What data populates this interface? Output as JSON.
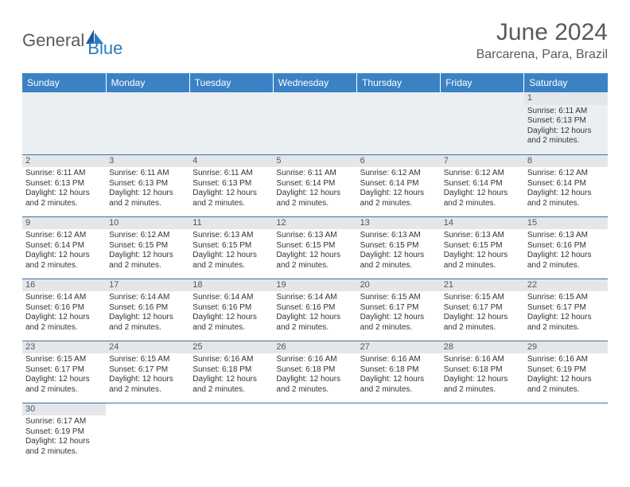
{
  "logo": {
    "part1": "General",
    "part2": "Blue"
  },
  "title": "June 2024",
  "location": "Barcarena, Para, Brazil",
  "colors": {
    "header_bg": "#3b82c4",
    "header_text": "#ffffff",
    "row_divider": "#3b6fa3",
    "daynum_bg": "#e4e7ea",
    "text": "#333333",
    "title_text": "#5a5a5a",
    "logo_blue": "#2b7bbf"
  },
  "weekdays": [
    "Sunday",
    "Monday",
    "Tuesday",
    "Wednesday",
    "Thursday",
    "Friday",
    "Saturday"
  ],
  "weeks": [
    [
      null,
      null,
      null,
      null,
      null,
      null,
      {
        "n": "1",
        "sr": "Sunrise: 6:11 AM",
        "ss": "Sunset: 6:13 PM",
        "dl": "Daylight: 12 hours and 2 minutes."
      }
    ],
    [
      {
        "n": "2",
        "sr": "Sunrise: 6:11 AM",
        "ss": "Sunset: 6:13 PM",
        "dl": "Daylight: 12 hours and 2 minutes."
      },
      {
        "n": "3",
        "sr": "Sunrise: 6:11 AM",
        "ss": "Sunset: 6:13 PM",
        "dl": "Daylight: 12 hours and 2 minutes."
      },
      {
        "n": "4",
        "sr": "Sunrise: 6:11 AM",
        "ss": "Sunset: 6:13 PM",
        "dl": "Daylight: 12 hours and 2 minutes."
      },
      {
        "n": "5",
        "sr": "Sunrise: 6:11 AM",
        "ss": "Sunset: 6:14 PM",
        "dl": "Daylight: 12 hours and 2 minutes."
      },
      {
        "n": "6",
        "sr": "Sunrise: 6:12 AM",
        "ss": "Sunset: 6:14 PM",
        "dl": "Daylight: 12 hours and 2 minutes."
      },
      {
        "n": "7",
        "sr": "Sunrise: 6:12 AM",
        "ss": "Sunset: 6:14 PM",
        "dl": "Daylight: 12 hours and 2 minutes."
      },
      {
        "n": "8",
        "sr": "Sunrise: 6:12 AM",
        "ss": "Sunset: 6:14 PM",
        "dl": "Daylight: 12 hours and 2 minutes."
      }
    ],
    [
      {
        "n": "9",
        "sr": "Sunrise: 6:12 AM",
        "ss": "Sunset: 6:14 PM",
        "dl": "Daylight: 12 hours and 2 minutes."
      },
      {
        "n": "10",
        "sr": "Sunrise: 6:12 AM",
        "ss": "Sunset: 6:15 PM",
        "dl": "Daylight: 12 hours and 2 minutes."
      },
      {
        "n": "11",
        "sr": "Sunrise: 6:13 AM",
        "ss": "Sunset: 6:15 PM",
        "dl": "Daylight: 12 hours and 2 minutes."
      },
      {
        "n": "12",
        "sr": "Sunrise: 6:13 AM",
        "ss": "Sunset: 6:15 PM",
        "dl": "Daylight: 12 hours and 2 minutes."
      },
      {
        "n": "13",
        "sr": "Sunrise: 6:13 AM",
        "ss": "Sunset: 6:15 PM",
        "dl": "Daylight: 12 hours and 2 minutes."
      },
      {
        "n": "14",
        "sr": "Sunrise: 6:13 AM",
        "ss": "Sunset: 6:15 PM",
        "dl": "Daylight: 12 hours and 2 minutes."
      },
      {
        "n": "15",
        "sr": "Sunrise: 6:13 AM",
        "ss": "Sunset: 6:16 PM",
        "dl": "Daylight: 12 hours and 2 minutes."
      }
    ],
    [
      {
        "n": "16",
        "sr": "Sunrise: 6:14 AM",
        "ss": "Sunset: 6:16 PM",
        "dl": "Daylight: 12 hours and 2 minutes."
      },
      {
        "n": "17",
        "sr": "Sunrise: 6:14 AM",
        "ss": "Sunset: 6:16 PM",
        "dl": "Daylight: 12 hours and 2 minutes."
      },
      {
        "n": "18",
        "sr": "Sunrise: 6:14 AM",
        "ss": "Sunset: 6:16 PM",
        "dl": "Daylight: 12 hours and 2 minutes."
      },
      {
        "n": "19",
        "sr": "Sunrise: 6:14 AM",
        "ss": "Sunset: 6:16 PM",
        "dl": "Daylight: 12 hours and 2 minutes."
      },
      {
        "n": "20",
        "sr": "Sunrise: 6:15 AM",
        "ss": "Sunset: 6:17 PM",
        "dl": "Daylight: 12 hours and 2 minutes."
      },
      {
        "n": "21",
        "sr": "Sunrise: 6:15 AM",
        "ss": "Sunset: 6:17 PM",
        "dl": "Daylight: 12 hours and 2 minutes."
      },
      {
        "n": "22",
        "sr": "Sunrise: 6:15 AM",
        "ss": "Sunset: 6:17 PM",
        "dl": "Daylight: 12 hours and 2 minutes."
      }
    ],
    [
      {
        "n": "23",
        "sr": "Sunrise: 6:15 AM",
        "ss": "Sunset: 6:17 PM",
        "dl": "Daylight: 12 hours and 2 minutes."
      },
      {
        "n": "24",
        "sr": "Sunrise: 6:15 AM",
        "ss": "Sunset: 6:17 PM",
        "dl": "Daylight: 12 hours and 2 minutes."
      },
      {
        "n": "25",
        "sr": "Sunrise: 6:16 AM",
        "ss": "Sunset: 6:18 PM",
        "dl": "Daylight: 12 hours and 2 minutes."
      },
      {
        "n": "26",
        "sr": "Sunrise: 6:16 AM",
        "ss": "Sunset: 6:18 PM",
        "dl": "Daylight: 12 hours and 2 minutes."
      },
      {
        "n": "27",
        "sr": "Sunrise: 6:16 AM",
        "ss": "Sunset: 6:18 PM",
        "dl": "Daylight: 12 hours and 2 minutes."
      },
      {
        "n": "28",
        "sr": "Sunrise: 6:16 AM",
        "ss": "Sunset: 6:18 PM",
        "dl": "Daylight: 12 hours and 2 minutes."
      },
      {
        "n": "29",
        "sr": "Sunrise: 6:16 AM",
        "ss": "Sunset: 6:19 PM",
        "dl": "Daylight: 12 hours and 2 minutes."
      }
    ],
    [
      {
        "n": "30",
        "sr": "Sunrise: 6:17 AM",
        "ss": "Sunset: 6:19 PM",
        "dl": "Daylight: 12 hours and 2 minutes."
      },
      null,
      null,
      null,
      null,
      null,
      null
    ]
  ]
}
